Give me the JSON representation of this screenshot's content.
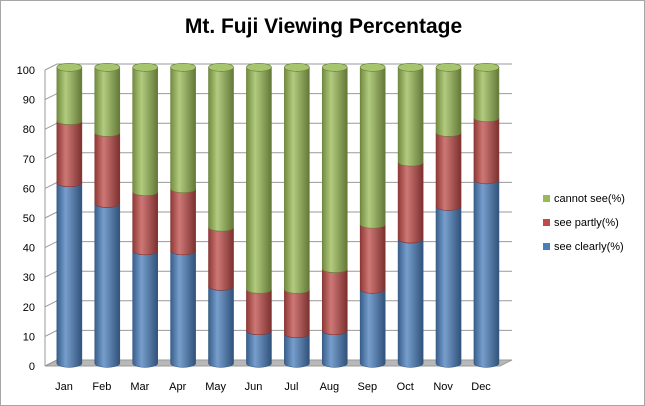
{
  "chart_data": {
    "type": "bar",
    "stacked": true,
    "title": "Mt. Fuji Viewing Percentage",
    "categories": [
      "Jan",
      "Feb",
      "Mar",
      "Apr",
      "May",
      "Jun",
      "Jul",
      "Aug",
      "Sep",
      "Oct",
      "Nov",
      "Dec"
    ],
    "ylim": [
      0,
      100
    ],
    "yticks": [
      0,
      10,
      20,
      30,
      40,
      50,
      60,
      70,
      80,
      90,
      100
    ],
    "grid": true,
    "legend_position": "right",
    "series": [
      {
        "name": "see clearly(%)",
        "color": "#4a7ebb",
        "values": [
          61,
          54,
          38,
          38,
          26,
          11,
          10,
          11,
          25,
          42,
          53,
          62
        ]
      },
      {
        "name": "see partly(%)",
        "color": "#be4b48",
        "values": [
          21,
          24,
          20,
          21,
          20,
          14,
          15,
          21,
          22,
          26,
          25,
          21
        ]
      },
      {
        "name": "cannot see(%)",
        "color": "#98b954",
        "values": [
          18,
          22,
          42,
          41,
          54,
          75,
          75,
          68,
          53,
          32,
          22,
          17
        ]
      }
    ]
  }
}
